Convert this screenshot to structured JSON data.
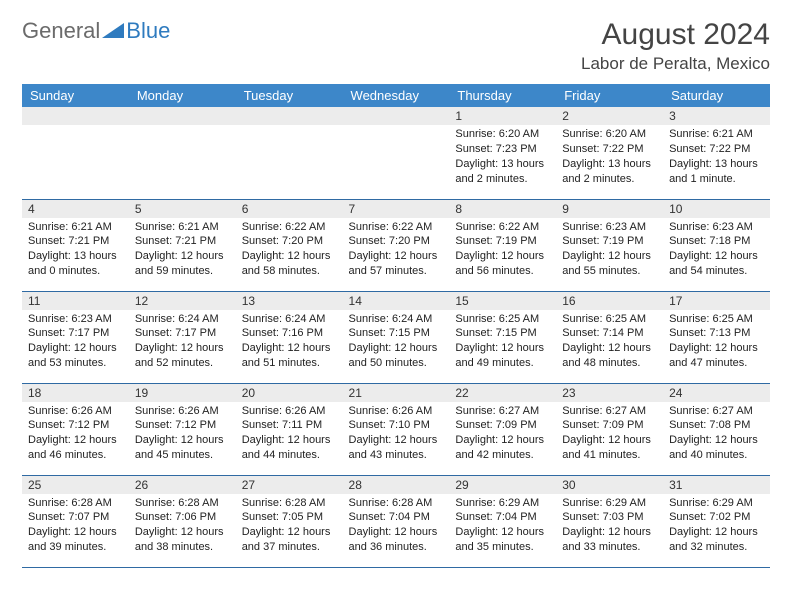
{
  "logo": {
    "general": "General",
    "blue": "Blue"
  },
  "title": "August 2024",
  "location": "Labor de Peralta, Mexico",
  "colors": {
    "header_bg": "#3d87c9",
    "header_text": "#ffffff",
    "daynum_bg": "#ececec",
    "row_border": "#2f6aa3",
    "logo_gray": "#6b6b6b",
    "logo_blue": "#2f7bbf"
  },
  "weekdays": [
    "Sunday",
    "Monday",
    "Tuesday",
    "Wednesday",
    "Thursday",
    "Friday",
    "Saturday"
  ],
  "weeks": [
    [
      null,
      null,
      null,
      null,
      {
        "n": "1",
        "sr": "6:20 AM",
        "ss": "7:23 PM",
        "dl": "13 hours and 2 minutes."
      },
      {
        "n": "2",
        "sr": "6:20 AM",
        "ss": "7:22 PM",
        "dl": "13 hours and 2 minutes."
      },
      {
        "n": "3",
        "sr": "6:21 AM",
        "ss": "7:22 PM",
        "dl": "13 hours and 1 minute."
      }
    ],
    [
      {
        "n": "4",
        "sr": "6:21 AM",
        "ss": "7:21 PM",
        "dl": "13 hours and 0 minutes."
      },
      {
        "n": "5",
        "sr": "6:21 AM",
        "ss": "7:21 PM",
        "dl": "12 hours and 59 minutes."
      },
      {
        "n": "6",
        "sr": "6:22 AM",
        "ss": "7:20 PM",
        "dl": "12 hours and 58 minutes."
      },
      {
        "n": "7",
        "sr": "6:22 AM",
        "ss": "7:20 PM",
        "dl": "12 hours and 57 minutes."
      },
      {
        "n": "8",
        "sr": "6:22 AM",
        "ss": "7:19 PM",
        "dl": "12 hours and 56 minutes."
      },
      {
        "n": "9",
        "sr": "6:23 AM",
        "ss": "7:19 PM",
        "dl": "12 hours and 55 minutes."
      },
      {
        "n": "10",
        "sr": "6:23 AM",
        "ss": "7:18 PM",
        "dl": "12 hours and 54 minutes."
      }
    ],
    [
      {
        "n": "11",
        "sr": "6:23 AM",
        "ss": "7:17 PM",
        "dl": "12 hours and 53 minutes."
      },
      {
        "n": "12",
        "sr": "6:24 AM",
        "ss": "7:17 PM",
        "dl": "12 hours and 52 minutes."
      },
      {
        "n": "13",
        "sr": "6:24 AM",
        "ss": "7:16 PM",
        "dl": "12 hours and 51 minutes."
      },
      {
        "n": "14",
        "sr": "6:24 AM",
        "ss": "7:15 PM",
        "dl": "12 hours and 50 minutes."
      },
      {
        "n": "15",
        "sr": "6:25 AM",
        "ss": "7:15 PM",
        "dl": "12 hours and 49 minutes."
      },
      {
        "n": "16",
        "sr": "6:25 AM",
        "ss": "7:14 PM",
        "dl": "12 hours and 48 minutes."
      },
      {
        "n": "17",
        "sr": "6:25 AM",
        "ss": "7:13 PM",
        "dl": "12 hours and 47 minutes."
      }
    ],
    [
      {
        "n": "18",
        "sr": "6:26 AM",
        "ss": "7:12 PM",
        "dl": "12 hours and 46 minutes."
      },
      {
        "n": "19",
        "sr": "6:26 AM",
        "ss": "7:12 PM",
        "dl": "12 hours and 45 minutes."
      },
      {
        "n": "20",
        "sr": "6:26 AM",
        "ss": "7:11 PM",
        "dl": "12 hours and 44 minutes."
      },
      {
        "n": "21",
        "sr": "6:26 AM",
        "ss": "7:10 PM",
        "dl": "12 hours and 43 minutes."
      },
      {
        "n": "22",
        "sr": "6:27 AM",
        "ss": "7:09 PM",
        "dl": "12 hours and 42 minutes."
      },
      {
        "n": "23",
        "sr": "6:27 AM",
        "ss": "7:09 PM",
        "dl": "12 hours and 41 minutes."
      },
      {
        "n": "24",
        "sr": "6:27 AM",
        "ss": "7:08 PM",
        "dl": "12 hours and 40 minutes."
      }
    ],
    [
      {
        "n": "25",
        "sr": "6:28 AM",
        "ss": "7:07 PM",
        "dl": "12 hours and 39 minutes."
      },
      {
        "n": "26",
        "sr": "6:28 AM",
        "ss": "7:06 PM",
        "dl": "12 hours and 38 minutes."
      },
      {
        "n": "27",
        "sr": "6:28 AM",
        "ss": "7:05 PM",
        "dl": "12 hours and 37 minutes."
      },
      {
        "n": "28",
        "sr": "6:28 AM",
        "ss": "7:04 PM",
        "dl": "12 hours and 36 minutes."
      },
      {
        "n": "29",
        "sr": "6:29 AM",
        "ss": "7:04 PM",
        "dl": "12 hours and 35 minutes."
      },
      {
        "n": "30",
        "sr": "6:29 AM",
        "ss": "7:03 PM",
        "dl": "12 hours and 33 minutes."
      },
      {
        "n": "31",
        "sr": "6:29 AM",
        "ss": "7:02 PM",
        "dl": "12 hours and 32 minutes."
      }
    ]
  ],
  "labels": {
    "sunrise": "Sunrise:",
    "sunset": "Sunset:",
    "daylight": "Daylight:"
  }
}
